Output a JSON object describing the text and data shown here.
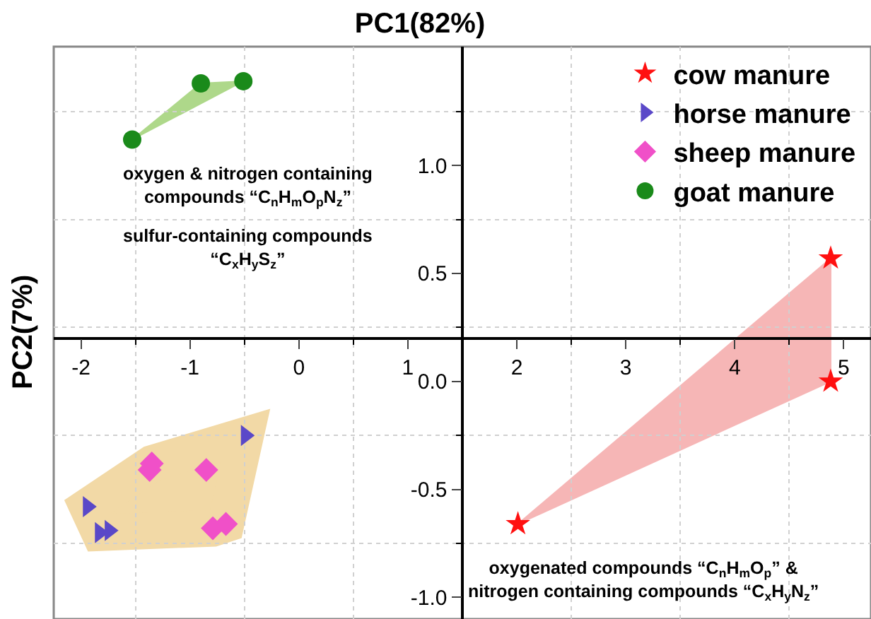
{
  "chart_data": {
    "type": "scatter",
    "title": "PC1(82%)",
    "ylabel": "PC2(7%)",
    "xlim": [
      -2.25,
      5.25
    ],
    "xticks": [
      -2,
      -1,
      0,
      1,
      2,
      3,
      4,
      5
    ],
    "ylim": [
      -1.1,
      1.55
    ],
    "yticks": [
      {
        "value": -1.0,
        "label": "-1.0"
      },
      -0.5,
      {
        "value": 0.0,
        "label": "0.0"
      },
      0.5,
      {
        "value": 1.0,
        "label": "1.0"
      }
    ],
    "grid": true,
    "legend": "top right",
    "series": [
      {
        "name": "cow manure",
        "color": "#ff1010",
        "marker": "star",
        "x": [
          4.88,
          4.88,
          2.01
        ],
        "values": [
          0.57,
          0.0,
          -0.66
        ]
      },
      {
        "name": "horse manure",
        "color": "#5a48c8",
        "marker": "triangle",
        "x": [
          -0.49,
          -1.94,
          -1.83,
          -1.74
        ],
        "values": [
          -0.25,
          -0.58,
          -0.7,
          -0.69
        ]
      },
      {
        "name": "sheep manure",
        "color": "#f050c8",
        "marker": "diamond",
        "x": [
          -1.35,
          -1.37,
          -0.85,
          -0.79,
          -0.67
        ],
        "values": [
          -0.38,
          -0.41,
          -0.41,
          -0.68,
          -0.66
        ]
      },
      {
        "name": "goat manure",
        "color": "#1a8a1a",
        "marker": "circle",
        "x": [
          -1.53,
          -0.9,
          -0.51
        ],
        "values": [
          1.12,
          1.38,
          1.39
        ]
      }
    ],
    "annotations": [
      "oxygen & nitrogen containing\ncompounds “C$_{n}$H$_{m}$O$_{p}$N$_{z}$”",
      "sulfur-containing compounds\n“C$_{x}$H$_{y}$S$_{z}$”",
      "oxygenated compounds “C$_{n}$H$_{m}$O$_{p}$” &\nnitrogen containing compounds “C$_{x}$H$_{y}$N$_{z}$”"
    ]
  }
}
